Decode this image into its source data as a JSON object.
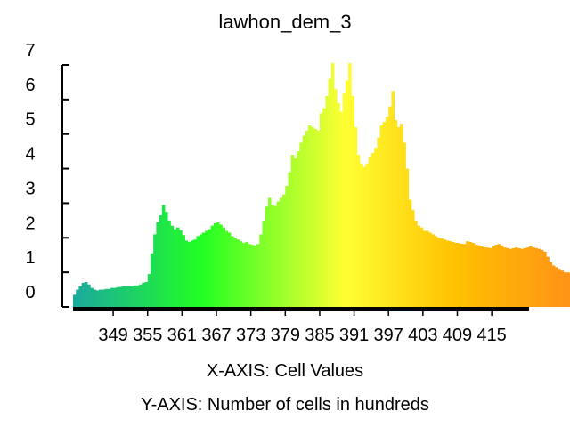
{
  "chart_data": {
    "type": "bar",
    "title": "lawhon_dem_3",
    "xlabel": "X-AXIS: Cell Values",
    "ylabel": "Y-AXIS: Number of cells in hundreds",
    "y_unit": "hundreds of cells",
    "xlim": [
      342,
      421.5
    ],
    "ylim": [
      0,
      7
    ],
    "x_ticks": [
      349,
      355,
      361,
      367,
      373,
      379,
      385,
      391,
      397,
      403,
      409,
      415
    ],
    "y_ticks": [
      0,
      1,
      2,
      3,
      4,
      5,
      6,
      7
    ],
    "bin_width": 0.5,
    "bin_start": 342.25,
    "values": [
      0.35,
      0.5,
      0.6,
      0.7,
      0.72,
      0.65,
      0.55,
      0.5,
      0.48,
      0.5,
      0.5,
      0.52,
      0.52,
      0.55,
      0.55,
      0.57,
      0.58,
      0.6,
      0.6,
      0.6,
      0.6,
      0.62,
      0.62,
      0.65,
      0.7,
      0.72,
      0.95,
      1.55,
      2.1,
      2.45,
      2.65,
      2.95,
      2.75,
      2.5,
      2.35,
      2.25,
      2.3,
      2.22,
      2.08,
      1.92,
      1.88,
      1.92,
      1.95,
      2.05,
      2.1,
      2.15,
      2.2,
      2.25,
      2.35,
      2.42,
      2.45,
      2.38,
      2.3,
      2.2,
      2.15,
      2.05,
      2.0,
      1.95,
      1.9,
      1.85,
      1.88,
      1.82,
      1.8,
      1.78,
      1.82,
      2.1,
      2.5,
      2.9,
      3.15,
      2.95,
      2.92,
      3.05,
      3.15,
      3.25,
      3.5,
      3.9,
      4.4,
      4.3,
      4.5,
      4.75,
      4.95,
      5.1,
      5.25,
      5.2,
      5.15,
      5.1,
      5.6,
      5.75,
      6.1,
      6.6,
      7.2,
      6.3,
      5.9,
      5.65,
      6.2,
      6.55,
      7.2,
      6.1,
      5.2,
      4.4,
      4.15,
      4.05,
      4.15,
      4.35,
      4.45,
      4.6,
      4.9,
      5.25,
      5.35,
      5.5,
      5.8,
      6.25,
      5.4,
      5.2,
      5.3,
      4.75,
      4.0,
      3.1,
      2.8,
      2.5,
      2.35,
      2.3,
      2.2,
      2.2,
      2.15,
      2.1,
      2.05,
      2.0,
      1.98,
      1.95,
      1.92,
      1.9,
      1.88,
      1.85,
      1.85,
      1.83,
      1.82,
      1.9,
      1.88,
      1.85,
      1.8,
      1.78,
      1.75,
      1.72,
      1.72,
      1.7,
      1.75,
      1.8,
      1.82,
      1.78,
      1.72,
      1.7,
      1.68,
      1.7,
      1.72,
      1.7,
      1.68,
      1.7,
      1.72,
      1.75,
      1.72,
      1.7,
      1.68,
      1.65,
      1.6,
      1.45,
      1.3,
      1.2,
      1.15,
      1.1,
      1.05,
      1.0,
      1.0,
      0.98,
      0.95,
      0.95,
      0.92,
      0.9,
      0.9,
      0.88,
      0.88,
      0.86,
      0.85,
      0.85,
      0.84,
      0.83,
      0.82,
      0.82,
      0.81,
      0.8,
      0.8,
      0.8,
      0.79,
      0.79,
      0.8,
      0.78,
      0.78,
      0.77,
      0.77,
      0.76,
      0.76,
      0.75,
      0.76,
      0.75,
      0.75,
      0.74,
      0.74,
      0.73,
      0.73,
      0.72,
      0.72,
      0.72,
      0.72,
      0.7,
      0.7,
      0.7,
      0.72,
      0.72,
      0.7,
      0.7,
      0.7,
      0.7,
      0.7,
      0.7,
      0.68,
      0.66,
      0.62,
      0.58,
      0.55,
      0.52,
      0.5,
      0.48,
      0.46,
      0.45,
      0.44,
      0.43,
      0.42,
      0.41,
      0.4,
      0.4,
      0.39,
      0.38,
      0.37,
      0.36,
      0.35,
      0.34,
      0.34,
      0.33,
      0.33
    ],
    "color_stops": [
      {
        "t": 0.0,
        "color": "#1aaa9e"
      },
      {
        "t": 0.18,
        "color": "#22ff22"
      },
      {
        "t": 0.38,
        "color": "#ffff33"
      },
      {
        "t": 0.54,
        "color": "#ffc000"
      },
      {
        "t": 0.72,
        "color": "#ff8c1a"
      },
      {
        "t": 1.0,
        "color": "#c8c8c8"
      }
    ],
    "grid": false,
    "legend": "none"
  }
}
